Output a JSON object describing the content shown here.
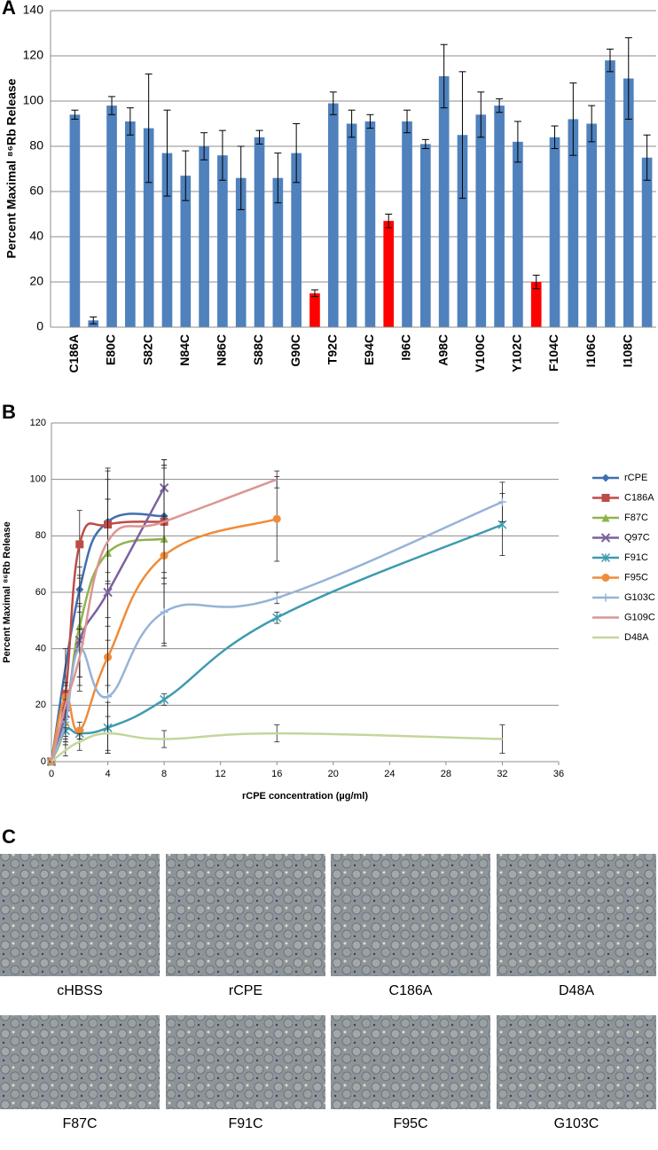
{
  "chart_data": [
    {
      "type": "bar",
      "panel_label": "A",
      "ylabel": "Percent Maximal ⁸⁶Rb Release",
      "categories": [
        "C186A",
        null,
        "E80C",
        null,
        "S82C",
        null,
        "N84C",
        null,
        "N86C",
        null,
        "S88C",
        null,
        "G90C",
        null,
        "T92C",
        null,
        "E94C",
        null,
        "I96C",
        null,
        "A98C",
        null,
        "V100C",
        null,
        "Y102C",
        null,
        "F104C",
        null,
        "I106C",
        null,
        "I108C",
        null
      ],
      "values": [
        94,
        3,
        98,
        91,
        88,
        77,
        67,
        80,
        76,
        66,
        84,
        66,
        77,
        15,
        99,
        90,
        91,
        47,
        91,
        81,
        111,
        85,
        94,
        98,
        82,
        20,
        84,
        92,
        90,
        118,
        110,
        75
      ],
      "errors": [
        2,
        1.5,
        4,
        6,
        24,
        19,
        11,
        6,
        11,
        14,
        3,
        11,
        13,
        1.5,
        5,
        6,
        3,
        3,
        5,
        2,
        14,
        28,
        10,
        3,
        9,
        3,
        5,
        16,
        8,
        5,
        18,
        10
      ],
      "colors": [
        "#4f81bd",
        "#4f81bd",
        "#4f81bd",
        "#4f81bd",
        "#4f81bd",
        "#4f81bd",
        "#4f81bd",
        "#4f81bd",
        "#4f81bd",
        "#4f81bd",
        "#4f81bd",
        "#4f81bd",
        "#4f81bd",
        "#ff0000",
        "#4f81bd",
        "#4f81bd",
        "#4f81bd",
        "#ff0000",
        "#4f81bd",
        "#4f81bd",
        "#4f81bd",
        "#4f81bd",
        "#4f81bd",
        "#4f81bd",
        "#4f81bd",
        "#ff0000",
        "#4f81bd",
        "#4f81bd",
        "#4f81bd",
        "#4f81bd",
        "#4f81bd",
        "#4f81bd"
      ],
      "ylim": [
        0,
        140
      ],
      "yticks": [
        0,
        20,
        40,
        60,
        80,
        100,
        120,
        140
      ],
      "grid": true
    },
    {
      "type": "line",
      "panel_label": "B",
      "ylabel": "Percent Maximal ⁸⁶Rb Release",
      "xlabel": "rCPE concentration (µg/ml)",
      "xlim": [
        0,
        36
      ],
      "xticks": [
        0,
        4,
        8,
        12,
        16,
        20,
        24,
        28,
        32,
        36
      ],
      "ylim": [
        0,
        120
      ],
      "yticks": [
        0,
        20,
        40,
        60,
        80,
        100,
        120
      ],
      "grid": true,
      "legend": "right",
      "series": [
        {
          "name": "rCPE",
          "color": "#3f6faf",
          "marker": "diamond",
          "x": [
            0,
            2,
            4,
            8
          ],
          "values": [
            0,
            61,
            85,
            87
          ],
          "errors": [
            0,
            8,
            18,
            20
          ]
        },
        {
          "name": "C186A",
          "color": "#be4b48",
          "marker": "square",
          "x": [
            0,
            1,
            2,
            4,
            8
          ],
          "values": [
            0,
            24,
            77,
            84,
            85
          ],
          "errors": [
            0,
            16,
            12,
            20,
            22
          ]
        },
        {
          "name": "F87C",
          "color": "#8fb34a",
          "marker": "triangle",
          "x": [
            0,
            1,
            2,
            4,
            8
          ],
          "values": [
            0,
            14,
            48,
            74,
            79
          ],
          "errors": [
            0,
            5,
            18,
            26,
            26
          ]
        },
        {
          "name": "Q97C",
          "color": "#7d60a0",
          "marker": "cross",
          "x": [
            0,
            1,
            2,
            4,
            8
          ],
          "values": [
            0,
            17,
            43,
            60,
            97
          ],
          "errors": [
            0,
            10,
            13,
            33,
            10
          ]
        },
        {
          "name": "F91C",
          "color": "#3d9bb0",
          "marker": "star",
          "x": [
            0,
            1,
            2,
            4,
            8,
            16,
            32
          ],
          "values": [
            0,
            11,
            10,
            12,
            22,
            51,
            84
          ],
          "errors": [
            0,
            4,
            2,
            9,
            2,
            2,
            11
          ]
        },
        {
          "name": "F95C",
          "color": "#f08b3a",
          "marker": "circle",
          "x": [
            0,
            1,
            2,
            4,
            8,
            16
          ],
          "values": [
            0,
            23,
            11,
            37,
            73,
            86
          ],
          "errors": [
            0,
            5,
            3,
            14,
            31,
            15
          ]
        },
        {
          "name": "G103C",
          "color": "#95b3d7",
          "marker": "plus",
          "x": [
            0,
            1,
            2,
            4,
            8,
            16,
            32
          ],
          "values": [
            0,
            14,
            40,
            23,
            53,
            58,
            92
          ],
          "errors": [
            0,
            8,
            15,
            20,
            12,
            2,
            7
          ]
        },
        {
          "name": "G109C",
          "color": "#d99694",
          "marker": "none",
          "x": [
            0,
            1,
            2,
            4,
            8,
            16
          ],
          "values": [
            0,
            20,
            37,
            78,
            85,
            100
          ],
          "errors": [
            0,
            8,
            10,
            15,
            20,
            3
          ]
        },
        {
          "name": "D48A",
          "color": "#c3d69b",
          "marker": "none",
          "x": [
            0,
            1,
            2,
            4,
            8,
            16,
            32
          ],
          "values": [
            0,
            4,
            7,
            10,
            8,
            10,
            8
          ],
          "errors": [
            0,
            2,
            3,
            6,
            3,
            3,
            5
          ]
        }
      ]
    }
  ],
  "micrographs": {
    "panel_label": "C",
    "captions": [
      "cHBSS",
      "rCPE",
      "C186A",
      "D48A",
      "F87C",
      "F91C",
      "F95C",
      "G103C"
    ]
  }
}
